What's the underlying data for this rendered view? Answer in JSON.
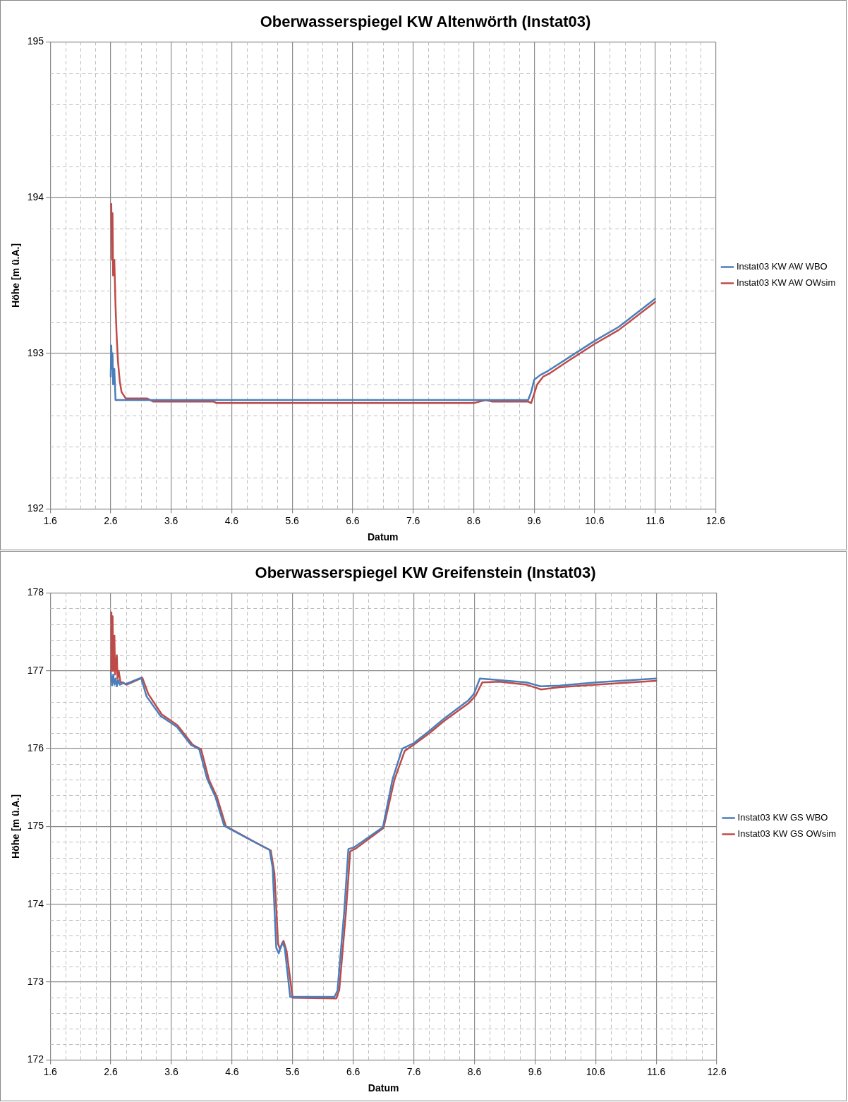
{
  "chart_data": [
    {
      "type": "line",
      "title": "Oberwasserspiegel KW Altenwörth (Instat03)",
      "xlabel": "Datum",
      "ylabel": "Höhe [m ü.A.]",
      "legend": "right",
      "grid": true,
      "marker": "none",
      "line_style": "solid",
      "xlim": [
        1.6,
        12.6
      ],
      "ylim": [
        192,
        195
      ],
      "xticks": [
        1.6,
        {
          "value": 1.85,
          "label": null
        },
        {
          "value": 2.1,
          "label": null
        },
        {
          "value": 2.35,
          "label": null
        },
        2.6,
        {
          "value": 2.85,
          "label": null
        },
        {
          "value": 3.1,
          "label": null
        },
        {
          "value": 3.35,
          "label": null
        },
        3.6,
        {
          "value": 3.85,
          "label": null
        },
        {
          "value": 4.1,
          "label": null
        },
        {
          "value": 4.35,
          "label": null
        },
        4.6,
        {
          "value": 4.85,
          "label": null
        },
        {
          "value": 5.1,
          "label": null
        },
        {
          "value": 5.35,
          "label": null
        },
        5.6,
        {
          "value": 5.85,
          "label": null
        },
        {
          "value": 6.1,
          "label": null
        },
        {
          "value": 6.35,
          "label": null
        },
        6.6,
        {
          "value": 6.85,
          "label": null
        },
        {
          "value": 7.1,
          "label": null
        },
        {
          "value": 7.35,
          "label": null
        },
        7.6,
        {
          "value": 7.85,
          "label": null
        },
        {
          "value": 8.1,
          "label": null
        },
        {
          "value": 8.35,
          "label": null
        },
        8.6,
        {
          "value": 8.85,
          "label": null
        },
        {
          "value": 9.1,
          "label": null
        },
        {
          "value": 9.35,
          "label": null
        },
        9.6,
        {
          "value": 9.85,
          "label": null
        },
        {
          "value": 10.1,
          "label": null
        },
        {
          "value": 10.35,
          "label": null
        },
        10.6,
        {
          "value": 10.85,
          "label": null
        },
        {
          "value": 11.1,
          "label": null
        },
        {
          "value": 11.35,
          "label": null
        },
        11.6,
        {
          "value": 11.85,
          "label": null
        },
        {
          "value": 12.1,
          "label": null
        },
        {
          "value": 12.35,
          "label": null
        },
        12.6
      ],
      "yticks": [
        192,
        {
          "value": 192.2,
          "label": null
        },
        {
          "value": 192.4,
          "label": null
        },
        {
          "value": 192.6,
          "label": null
        },
        {
          "value": 192.8,
          "label": null
        },
        193,
        {
          "value": 193.2,
          "label": null
        },
        {
          "value": 193.4,
          "label": null
        },
        {
          "value": 193.6,
          "label": null
        },
        {
          "value": 193.8,
          "label": null
        },
        194,
        {
          "value": 194.2,
          "label": null
        },
        {
          "value": 194.4,
          "label": null
        },
        {
          "value": 194.6,
          "label": null
        },
        {
          "value": 194.8,
          "label": null
        },
        195
      ],
      "series": [
        {
          "name": "Instat03 KW AW WBO",
          "color": "#4a7ebb",
          "x": [
            2.6,
            2.61,
            2.62,
            2.63,
            2.64,
            2.66,
            2.68,
            3.0,
            4.0,
            5.0,
            6.0,
            7.0,
            8.0,
            9.0,
            9.5,
            9.55,
            9.6,
            9.7,
            9.8,
            10.2,
            10.6,
            11.0,
            11.6
          ],
          "values": [
            192.85,
            193.05,
            192.9,
            193.0,
            192.8,
            192.9,
            192.7,
            192.7,
            192.7,
            192.7,
            192.7,
            192.7,
            192.7,
            192.7,
            192.7,
            192.75,
            192.83,
            192.86,
            192.88,
            192.98,
            193.08,
            193.17,
            193.35
          ]
        },
        {
          "name": "Instat03 KW AW OWsim",
          "color": "#be4b48",
          "x": [
            2.61,
            2.62,
            2.63,
            2.64,
            2.66,
            2.68,
            2.7,
            2.72,
            2.75,
            2.78,
            2.85,
            3.2,
            3.3,
            4.3,
            4.35,
            5.0,
            6.0,
            7.0,
            8.0,
            8.6,
            8.8,
            8.9,
            9.5,
            9.55,
            9.65,
            9.75,
            9.85,
            10.2,
            10.6,
            11.0,
            11.6
          ],
          "values": [
            193.96,
            193.6,
            193.9,
            193.5,
            193.6,
            193.3,
            193.1,
            192.95,
            192.82,
            192.75,
            192.71,
            192.71,
            192.69,
            192.69,
            192.68,
            192.68,
            192.68,
            192.68,
            192.68,
            192.68,
            192.7,
            192.69,
            192.69,
            192.68,
            192.8,
            192.85,
            192.87,
            192.96,
            193.06,
            193.15,
            193.33
          ]
        }
      ]
    },
    {
      "type": "line",
      "title": "Oberwasserspiegel KW Greifenstein (Instat03)",
      "xlabel": "Datum",
      "ylabel": "Höhe [m ü.A.]",
      "legend": "right",
      "grid": true,
      "marker": "none",
      "line_style": "solid",
      "xlim": [
        1.6,
        12.6
      ],
      "ylim": [
        172,
        178
      ],
      "xticks": [
        1.6,
        {
          "value": 1.85,
          "label": null
        },
        {
          "value": 2.1,
          "label": null
        },
        {
          "value": 2.35,
          "label": null
        },
        2.6,
        {
          "value": 2.85,
          "label": null
        },
        {
          "value": 3.1,
          "label": null
        },
        {
          "value": 3.35,
          "label": null
        },
        3.6,
        {
          "value": 3.85,
          "label": null
        },
        {
          "value": 4.1,
          "label": null
        },
        {
          "value": 4.35,
          "label": null
        },
        4.6,
        {
          "value": 4.85,
          "label": null
        },
        {
          "value": 5.1,
          "label": null
        },
        {
          "value": 5.35,
          "label": null
        },
        5.6,
        {
          "value": 5.85,
          "label": null
        },
        {
          "value": 6.1,
          "label": null
        },
        {
          "value": 6.35,
          "label": null
        },
        6.6,
        {
          "value": 6.85,
          "label": null
        },
        {
          "value": 7.1,
          "label": null
        },
        {
          "value": 7.35,
          "label": null
        },
        7.6,
        {
          "value": 7.85,
          "label": null
        },
        {
          "value": 8.1,
          "label": null
        },
        {
          "value": 8.35,
          "label": null
        },
        8.6,
        {
          "value": 8.85,
          "label": null
        },
        {
          "value": 9.1,
          "label": null
        },
        {
          "value": 9.35,
          "label": null
        },
        9.6,
        {
          "value": 9.85,
          "label": null
        },
        {
          "value": 10.1,
          "label": null
        },
        {
          "value": 10.35,
          "label": null
        },
        10.6,
        {
          "value": 10.85,
          "label": null
        },
        {
          "value": 11.1,
          "label": null
        },
        {
          "value": 11.35,
          "label": null
        },
        11.6,
        {
          "value": 11.85,
          "label": null
        },
        {
          "value": 12.1,
          "label": null
        },
        {
          "value": 12.35,
          "label": null
        },
        12.6
      ],
      "yticks": [
        172,
        {
          "value": 172.2,
          "label": null
        },
        {
          "value": 172.4,
          "label": null
        },
        {
          "value": 172.6,
          "label": null
        },
        {
          "value": 172.8,
          "label": null
        },
        173,
        {
          "value": 173.2,
          "label": null
        },
        {
          "value": 173.4,
          "label": null
        },
        {
          "value": 173.6,
          "label": null
        },
        {
          "value": 173.8,
          "label": null
        },
        174,
        {
          "value": 174.2,
          "label": null
        },
        {
          "value": 174.4,
          "label": null
        },
        {
          "value": 174.6,
          "label": null
        },
        {
          "value": 174.8,
          "label": null
        },
        175,
        {
          "value": 175.2,
          "label": null
        },
        {
          "value": 175.4,
          "label": null
        },
        {
          "value": 175.6,
          "label": null
        },
        {
          "value": 175.8,
          "label": null
        },
        176,
        {
          "value": 176.2,
          "label": null
        },
        {
          "value": 176.4,
          "label": null
        },
        {
          "value": 176.6,
          "label": null
        },
        {
          "value": 176.8,
          "label": null
        },
        177,
        {
          "value": 177.2,
          "label": null
        },
        {
          "value": 177.4,
          "label": null
        },
        {
          "value": 177.6,
          "label": null
        },
        {
          "value": 177.8,
          "label": null
        },
        178
      ],
      "series": [
        {
          "name": "Instat03 KW GS WBO",
          "color": "#4a7ebb",
          "x": [
            2.6,
            2.62,
            2.64,
            2.66,
            2.68,
            2.7,
            2.72,
            2.75,
            2.8,
            2.85,
            3.1,
            3.19,
            3.42,
            3.69,
            3.92,
            4.06,
            4.19,
            4.33,
            4.47,
            4.56,
            4.92,
            5.22,
            5.27,
            5.33,
            5.37,
            5.43,
            5.47,
            5.56,
            6.29,
            6.34,
            6.45,
            6.52,
            6.61,
            7.09,
            7.25,
            7.41,
            7.6,
            7.86,
            8.09,
            8.5,
            8.59,
            8.69,
            9.01,
            9.46,
            9.69,
            10.01,
            10.6,
            11.6
          ],
          "values": [
            176.98,
            176.81,
            176.95,
            176.82,
            176.9,
            176.8,
            176.88,
            176.82,
            176.84,
            176.83,
            176.91,
            176.67,
            176.42,
            176.28,
            176.05,
            175.99,
            175.61,
            175.37,
            175.01,
            174.97,
            174.82,
            174.7,
            174.47,
            173.44,
            173.37,
            173.51,
            173.44,
            172.81,
            172.81,
            172.89,
            173.89,
            174.71,
            174.73,
            174.99,
            175.61,
            176.0,
            176.07,
            176.23,
            176.38,
            176.62,
            176.7,
            176.9,
            176.88,
            176.85,
            176.8,
            176.81,
            176.85,
            176.9
          ]
        },
        {
          "name": "Instat03 KW GS OWsim",
          "color": "#be4b48",
          "x": [
            2.6,
            2.61,
            2.62,
            2.63,
            2.64,
            2.66,
            2.67,
            2.7,
            2.71,
            2.73,
            2.76,
            2.8,
            2.86,
            3.12,
            3.22,
            3.44,
            3.7,
            3.95,
            4.09,
            4.22,
            4.35,
            4.5,
            4.6,
            4.95,
            5.24,
            5.3,
            5.36,
            5.39,
            5.45,
            5.5,
            5.6,
            6.32,
            6.37,
            6.48,
            6.55,
            6.65,
            7.1,
            7.28,
            7.45,
            7.6,
            7.86,
            8.09,
            8.5,
            8.62,
            8.73,
            9.01,
            9.46,
            9.7,
            10.01,
            10.6,
            11.6
          ],
          "values": [
            177.0,
            177.75,
            177.0,
            177.7,
            177.0,
            177.45,
            176.95,
            177.2,
            176.9,
            177.0,
            176.85,
            176.85,
            176.82,
            176.91,
            176.7,
            176.44,
            176.3,
            176.05,
            175.99,
            175.6,
            175.38,
            175.0,
            174.96,
            174.81,
            174.69,
            174.4,
            173.5,
            173.42,
            173.53,
            173.4,
            172.8,
            172.79,
            172.9,
            173.9,
            174.68,
            174.72,
            174.98,
            175.6,
            175.97,
            176.05,
            176.2,
            176.35,
            176.58,
            176.68,
            176.85,
            176.86,
            176.82,
            176.76,
            176.79,
            176.82,
            176.87
          ]
        }
      ]
    }
  ]
}
